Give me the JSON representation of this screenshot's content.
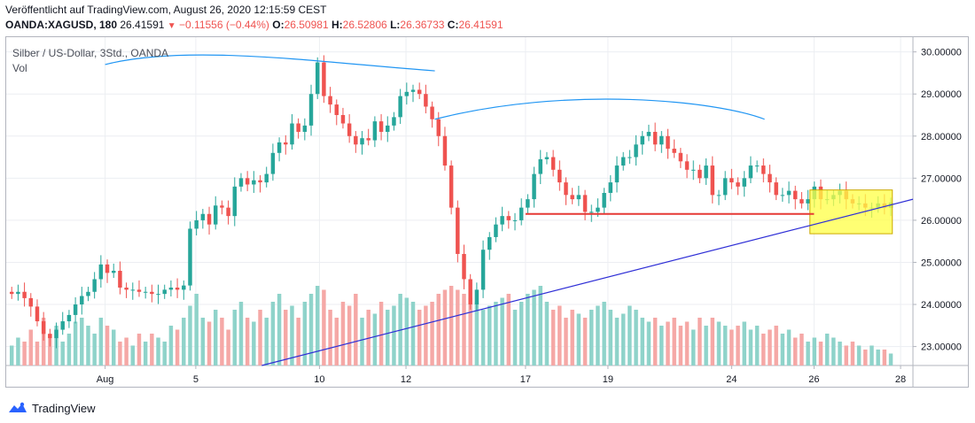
{
  "header": {
    "published": "Veröffentlicht auf TradingView.com, August 26, 2020 12:15:59 CEST",
    "symbol": "OANDA:XAGUSD, 180",
    "last": "26.41591",
    "arrow": "▼",
    "change": "−0.11556 (−0.44%)",
    "o_label": "O:",
    "o_value": "26.50981",
    "h_label": "H:",
    "h_value": "26.52806",
    "l_label": "L:",
    "l_value": "26.36733",
    "c_label": "C:",
    "c_value": "26.41591"
  },
  "legend": {
    "title": "Silber / US-Dollar, 3Std., OANDA",
    "volume": "Vol"
  },
  "footer": {
    "brand": "TradingView"
  },
  "colors": {
    "up": "#26a69a",
    "down": "#ef5350",
    "vol_up": "#8fd3ca",
    "vol_down": "#f5a8a6",
    "trendline": "#2f2fd6",
    "arc": "#2196f3",
    "support": "#e53935",
    "box_fill": "#ffff44",
    "box_edge": "#ccaa00"
  },
  "chart_data": {
    "type": "candlestick",
    "symbol": "XAGUSD",
    "timeframe": "3H",
    "y_ticks": [
      "30.00000",
      "29.00000",
      "28.00000",
      "27.00000",
      "26.00000",
      "25.00000",
      "24.00000",
      "23.00000"
    ],
    "ylim": [
      22.55,
      30.35
    ],
    "x_ticks": [
      "Aug",
      "5",
      "10",
      "12",
      "17",
      "19",
      "24",
      "26",
      "28"
    ],
    "xlim": [
      0,
      110
    ],
    "x_tick_positions": [
      12,
      23,
      38,
      48.5,
      63,
      73,
      88,
      98,
      108.5
    ],
    "close_series": [
      24.25,
      24.3,
      24.15,
      23.95,
      23.6,
      23.3,
      23.2,
      23.4,
      23.6,
      23.75,
      24.0,
      24.2,
      24.3,
      24.6,
      24.95,
      24.75,
      24.8,
      24.4,
      24.35,
      24.35,
      24.3,
      24.3,
      24.25,
      24.25,
      24.35,
      24.4,
      24.35,
      24.45,
      25.8,
      26.0,
      26.15,
      25.9,
      26.35,
      26.3,
      26.1,
      26.8,
      27.0,
      26.85,
      26.95,
      26.9,
      27.1,
      27.6,
      27.85,
      27.8,
      28.3,
      28.1,
      28.25,
      29.0,
      29.75,
      28.95,
      28.75,
      28.5,
      28.3,
      28.0,
      27.8,
      27.95,
      27.9,
      28.35,
      28.1,
      28.25,
      28.45,
      28.95,
      29.05,
      29.1,
      29.0,
      28.7,
      28.4,
      28.0,
      27.3,
      26.3,
      25.2,
      24.6,
      24.0,
      24.35,
      25.3,
      25.6,
      25.9,
      26.1,
      26.0,
      26.0,
      26.3,
      26.5,
      27.1,
      27.45,
      27.5,
      27.2,
      26.9,
      26.6,
      26.5,
      26.6,
      26.2,
      26.2,
      26.3,
      26.65,
      26.9,
      27.3,
      27.5,
      27.5,
      27.8,
      28.0,
      28.1,
      27.8,
      28.0,
      27.7,
      27.6,
      27.4,
      27.2,
      27.2,
      27.0,
      27.3,
      26.6,
      26.6,
      27.0,
      26.9,
      26.8,
      27.0,
      27.3,
      27.3,
      27.1,
      26.9,
      26.6,
      26.6,
      26.7,
      26.5,
      26.4,
      26.5,
      26.8,
      26.5,
      26.5,
      26.6,
      26.7,
      26.5,
      26.4,
      26.4,
      26.3,
      26.3,
      26.4,
      26.3,
      26.42
    ],
    "volume_relative": [
      0.25,
      0.35,
      0.3,
      0.45,
      0.3,
      0.6,
      0.4,
      0.5,
      0.3,
      0.4,
      0.55,
      0.6,
      0.5,
      0.4,
      0.6,
      0.5,
      0.45,
      0.3,
      0.35,
      0.25,
      0.4,
      0.3,
      0.4,
      0.35,
      0.3,
      0.5,
      0.45,
      0.6,
      0.75,
      0.9,
      0.6,
      0.55,
      0.7,
      0.6,
      0.45,
      0.7,
      0.8,
      0.6,
      0.55,
      0.7,
      0.6,
      0.8,
      0.9,
      0.7,
      0.75,
      0.6,
      0.8,
      0.9,
      1.0,
      0.95,
      0.7,
      0.6,
      0.8,
      0.75,
      0.9,
      0.6,
      0.7,
      0.65,
      0.8,
      0.7,
      0.75,
      0.9,
      0.85,
      0.8,
      0.7,
      0.75,
      0.8,
      0.9,
      0.95,
      1.0,
      0.95,
      0.9,
      0.85,
      0.8,
      0.7,
      0.75,
      0.8,
      0.85,
      0.9,
      0.7,
      0.8,
      0.9,
      0.95,
      1.0,
      0.8,
      0.7,
      0.75,
      0.6,
      0.7,
      0.65,
      0.6,
      0.7,
      0.75,
      0.8,
      0.7,
      0.6,
      0.65,
      0.75,
      0.7,
      0.6,
      0.55,
      0.6,
      0.5,
      0.55,
      0.6,
      0.5,
      0.55,
      0.45,
      0.6,
      0.5,
      0.6,
      0.55,
      0.5,
      0.45,
      0.5,
      0.55,
      0.45,
      0.5,
      0.4,
      0.45,
      0.5,
      0.4,
      0.45,
      0.35,
      0.4,
      0.3,
      0.35,
      0.3,
      0.4,
      0.35,
      0.3,
      0.25,
      0.3,
      0.25,
      0.2,
      0.25,
      0.2,
      0.2,
      0.15
    ],
    "annotations": {
      "support_level": 26.15,
      "support_from_x": 63,
      "support_to_x": 98,
      "trendline": [
        [
          31,
          22.55
        ],
        [
          110,
          26.5
        ]
      ],
      "highlight_box": {
        "x0": 97.5,
        "x1": 107.5,
        "y0": 25.68,
        "y1": 26.72
      },
      "arc1": [
        [
          12,
          29.7
        ],
        [
          22,
          30.2
        ],
        [
          38,
          29.75
        ],
        [
          52,
          29.55
        ]
      ],
      "arc2": [
        [
          52,
          28.4
        ],
        [
          68,
          29.2
        ],
        [
          86,
          28.85
        ],
        [
          92,
          28.4
        ]
      ]
    }
  }
}
